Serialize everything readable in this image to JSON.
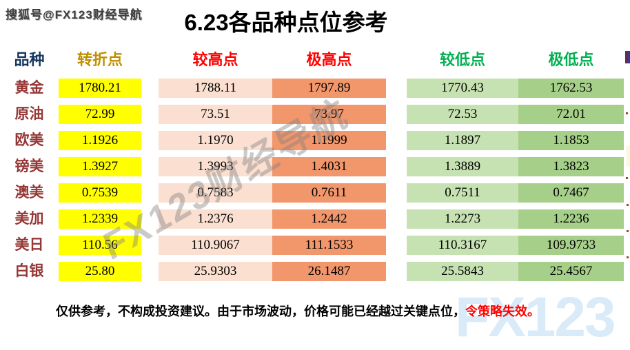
{
  "page": {
    "publisher_watermark": "搜狐号@FX123财经导航",
    "title": "6.23各品种点位参考",
    "diagonal_watermark": "FX123财经导航",
    "corner_watermark": "FX123"
  },
  "table": {
    "headers": [
      "品种",
      "转折点",
      "较高点",
      "极高点",
      "较低点",
      "极低点"
    ],
    "rows": [
      {
        "name": "黄金",
        "values": [
          "1780.21",
          "1788.11",
          "1797.89",
          "1770.43",
          "1762.53"
        ]
      },
      {
        "name": "原油",
        "values": [
          "72.99",
          "73.51",
          "73.97",
          "72.53",
          "72.01"
        ]
      },
      {
        "name": "欧美",
        "values": [
          "1.1926",
          "1.1970",
          "1.1999",
          "1.1897",
          "1.1853"
        ]
      },
      {
        "name": "镑美",
        "values": [
          "1.3927",
          "1.3993",
          "1.4031",
          "1.3889",
          "1.3823"
        ]
      },
      {
        "name": "澳美",
        "values": [
          "0.7539",
          "0.7583",
          "0.7611",
          "0.7511",
          "0.7467"
        ]
      },
      {
        "name": "美加",
        "values": [
          "1.2339",
          "1.2376",
          "1.2442",
          "1.2273",
          "1.2236"
        ]
      },
      {
        "name": "美日",
        "values": [
          "110.56",
          "110.9067",
          "111.1533",
          "110.3167",
          "109.9733"
        ]
      },
      {
        "name": "白银",
        "values": [
          "25.80",
          "25.9303",
          "26.1487",
          "25.5843",
          "25.4567"
        ]
      }
    ]
  },
  "footer": {
    "disclaimer": "仅供参考，不构成投资建议。由于市场波动，价格可能已经越过关键点位，",
    "warning": "令策略失效。"
  },
  "colors": {
    "column_yellow": "#FFFF00",
    "column_peach": "#FBDFD0",
    "column_orange": "#F2966B",
    "column_light_green": "#C6E2B2",
    "column_dark_green": "#A6D089",
    "header_blue": "#17375E",
    "header_gold": "#BF8F00",
    "header_red": "#FF0000",
    "header_green": "#00B050",
    "row_label_red": "#953735",
    "footer_warning_red": "#FF0000",
    "corner_watermark_blue": "#D9EAF8"
  },
  "chart_data": {
    "type": "table",
    "title": "6.23各品种点位参考",
    "columns": [
      "品种",
      "转折点",
      "较高点",
      "极高点",
      "较低点",
      "极低点"
    ],
    "rows": [
      [
        "黄金",
        1780.21,
        1788.11,
        1797.89,
        1770.43,
        1762.53
      ],
      [
        "原油",
        72.99,
        73.51,
        73.97,
        72.53,
        72.01
      ],
      [
        "欧美",
        1.1926,
        1.197,
        1.1999,
        1.1897,
        1.1853
      ],
      [
        "镑美",
        1.3927,
        1.3993,
        1.4031,
        1.3889,
        1.3823
      ],
      [
        "澳美",
        0.7539,
        0.7583,
        0.7611,
        0.7511,
        0.7467
      ],
      [
        "美加",
        1.2339,
        1.2376,
        1.2442,
        1.2273,
        1.2236
      ],
      [
        "美日",
        110.56,
        110.9067,
        111.1533,
        110.3167,
        109.9733
      ],
      [
        "白银",
        25.8,
        25.9303,
        26.1487,
        25.5843,
        25.4567
      ]
    ],
    "notes": "columns 2-6 are price levels: pivot, higher, extreme-high, lower, extreme-low"
  }
}
